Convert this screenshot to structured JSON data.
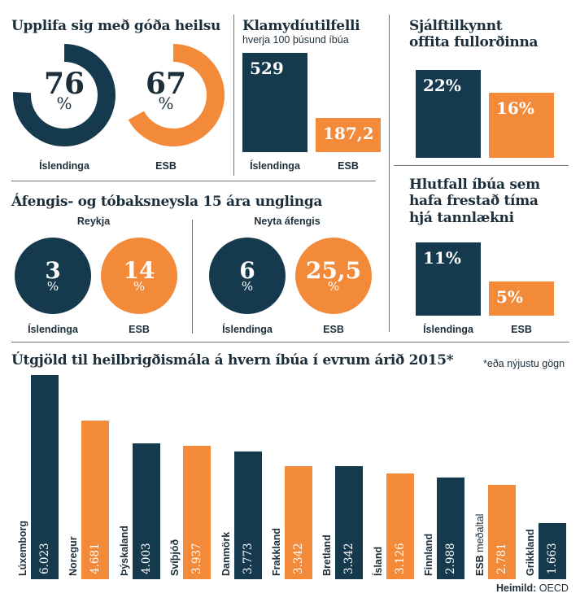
{
  "sections": {
    "health": {
      "title": "Upplifa sig með góða heilsu",
      "items": [
        {
          "label": "Íslendinga",
          "value": "76",
          "unit": "%",
          "fraction": 0.76,
          "color": "#163a4d"
        },
        {
          "label": "ESB",
          "value": "67",
          "unit": "%",
          "fraction": 0.67,
          "color": "#f28a3a"
        }
      ]
    },
    "chlamydia": {
      "title": "Klamydíutilfelli",
      "subtitle": "hverja 100 þúsund íbúa",
      "items": [
        {
          "label": "Íslendinga",
          "value": "529",
          "number": 529,
          "color": "#163a4d"
        },
        {
          "label": "ESB",
          "value": "187,2",
          "number": 187.2,
          "color": "#f28a3a"
        }
      ]
    },
    "obesity": {
      "title_line1": "Sjálftilkynnt",
      "title_line2": "offita fullorðinna",
      "items": [
        {
          "label": "Íslendinga",
          "value": "22%",
          "number": 22,
          "color": "#163a4d"
        },
        {
          "label": "ESB",
          "value": "16%",
          "number": 16,
          "color": "#f28a3a"
        }
      ]
    },
    "youth": {
      "title": "Áfengis- og tóbaksneysla 15 ára unglinga",
      "groups": [
        {
          "heading": "Reykja",
          "items": [
            {
              "label": "Íslendinga",
              "value": "3",
              "unit": "%",
              "color": "#163a4d"
            },
            {
              "label": "ESB",
              "value": "14",
              "unit": "%",
              "color": "#f28a3a"
            }
          ]
        },
        {
          "heading": "Neyta áfengis",
          "items": [
            {
              "label": "Íslendinga",
              "value": "6",
              "unit": "%",
              "color": "#163a4d"
            },
            {
              "label": "ESB",
              "value": "25,5",
              "unit": "%",
              "color": "#f28a3a"
            }
          ]
        }
      ]
    },
    "dentist": {
      "title_line1": "Hlutfall íbúa sem",
      "title_line2": "hafa frestað tíma",
      "title_line3": "hjá tannlækni",
      "items": [
        {
          "label": "Íslendinga",
          "value": "11%",
          "number": 11,
          "color": "#163a4d"
        },
        {
          "label": "ESB",
          "value": "5%",
          "number": 5,
          "color": "#f28a3a"
        }
      ]
    },
    "spending": {
      "title": "Útgjöld til heilbrigðismála á hvern íbúa í evrum árið 2015*",
      "footnote": "*eða nýjustu gögn",
      "source_label": "Heimild:",
      "source_value": "OECD"
    }
  },
  "chart_data": {
    "type": "bar",
    "title": "Útgjöld til heilbrigðismála á hvern íbúa í evrum árið 2015*",
    "categories": [
      "Lúxemborg",
      "Noregur",
      "Þýskaland",
      "Svíþjóð",
      "Danmörk",
      "Frakkland",
      "Bretland",
      "Ísland",
      "Finnland",
      "ESB meðaltal",
      "Grikkland"
    ],
    "category_bold": [
      "Lúxemborg",
      "Noregur",
      "Þýskaland",
      "Svíþjóð",
      "Danmörk",
      "Frakkland",
      "Bretland",
      "Ísland",
      "Finnland",
      "ESB",
      "Grikkland"
    ],
    "category_rest": [
      "",
      "",
      "",
      "",
      "",
      "",
      "",
      "",
      "",
      " meðaltal",
      ""
    ],
    "values": [
      6023,
      4681,
      4003,
      3937,
      3773,
      3342,
      3342,
      3126,
      2988,
      2781,
      1663
    ],
    "value_labels": [
      "6.023",
      "4.681",
      "4.003",
      "3.937",
      "3.773",
      "3.342",
      "3.342",
      "3.126",
      "2.988",
      "2.781",
      "1.663"
    ],
    "colors": [
      "#163a4d",
      "#f28a3a",
      "#163a4d",
      "#f28a3a",
      "#163a4d",
      "#f28a3a",
      "#163a4d",
      "#f28a3a",
      "#163a4d",
      "#f28a3a",
      "#163a4d"
    ],
    "ylim": [
      0,
      6023
    ]
  }
}
